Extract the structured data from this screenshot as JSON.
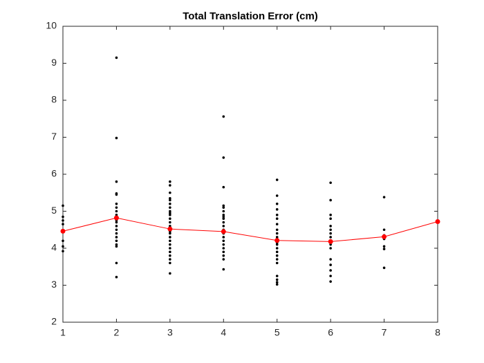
{
  "chart_data": {
    "type": "scatter",
    "title": "Total Translation Error (cm)",
    "xlim": [
      1,
      8
    ],
    "xticks": [
      1,
      2,
      3,
      4,
      5,
      6,
      7,
      8
    ],
    "ylim": [
      2,
      10
    ],
    "yticks": [
      2,
      3,
      4,
      5,
      6,
      7,
      8,
      9,
      10
    ],
    "box": true,
    "series": [
      {
        "mode": "markers",
        "color": "#000000",
        "x": [
          1,
          1,
          1,
          1,
          1,
          1,
          1,
          1,
          2,
          2,
          2,
          2,
          2,
          2,
          2,
          2,
          2,
          2,
          2,
          2,
          2,
          2,
          2,
          2,
          2,
          2,
          2,
          2,
          2,
          2,
          3,
          3,
          3,
          3,
          3,
          3,
          3,
          3,
          3,
          3,
          3,
          3,
          3,
          3,
          3,
          3,
          3,
          3,
          3,
          3,
          3,
          3,
          3,
          3,
          3,
          3,
          4,
          4,
          4,
          4,
          4,
          4,
          4,
          4,
          4,
          4,
          4,
          4,
          4,
          4,
          4,
          4,
          4,
          4,
          4,
          4,
          4,
          4,
          5,
          5,
          5,
          5,
          5,
          5,
          5,
          5,
          5,
          5,
          5,
          5,
          5,
          5,
          5,
          5,
          5,
          5,
          5,
          5,
          5,
          5,
          6,
          6,
          6,
          6,
          6,
          6,
          6,
          6,
          6,
          6,
          6,
          6,
          6,
          6,
          6,
          6,
          7,
          7,
          7,
          7,
          7,
          7,
          7,
          7
        ],
        "y": [
          5.15,
          4.85,
          4.75,
          4.65,
          4.45,
          4.2,
          4.05,
          3.92,
          9.15,
          6.98,
          5.8,
          5.48,
          5.45,
          5.2,
          5.1,
          5.0,
          4.9,
          4.85,
          4.8,
          4.75,
          4.7,
          4.6,
          4.5,
          4.4,
          4.3,
          4.2,
          4.1,
          4.05,
          3.6,
          3.22,
          5.8,
          5.7,
          5.5,
          5.35,
          5.3,
          5.2,
          5.1,
          5.0,
          4.95,
          4.9,
          4.8,
          4.7,
          4.6,
          4.55,
          4.5,
          4.45,
          4.4,
          4.3,
          4.2,
          4.1,
          4.0,
          3.9,
          3.8,
          3.7,
          3.6,
          3.32,
          7.56,
          6.45,
          5.65,
          5.15,
          5.1,
          5.0,
          4.9,
          4.85,
          4.8,
          4.7,
          4.6,
          4.5,
          4.45,
          4.4,
          4.3,
          4.2,
          4.1,
          4.0,
          3.9,
          3.8,
          3.7,
          3.43,
          5.85,
          5.42,
          5.2,
          5.05,
          4.9,
          4.8,
          4.65,
          4.5,
          4.4,
          4.3,
          4.2,
          4.15,
          4.1,
          4.0,
          3.9,
          3.8,
          3.7,
          3.6,
          3.25,
          3.15,
          3.08,
          3.02,
          5.77,
          5.3,
          4.9,
          4.8,
          4.6,
          4.5,
          4.4,
          4.3,
          4.2,
          4.1,
          4.0,
          3.7,
          3.55,
          3.4,
          3.25,
          3.1,
          5.38,
          4.5,
          4.35,
          4.3,
          4.25,
          4.05,
          3.98,
          3.47
        ]
      },
      {
        "mode": "lines+markers",
        "color": "#ff0000",
        "x": [
          1,
          2,
          3,
          4,
          5,
          6,
          7,
          8
        ],
        "y": [
          4.46,
          4.82,
          4.52,
          4.45,
          4.21,
          4.18,
          4.31,
          4.72
        ]
      }
    ]
  }
}
